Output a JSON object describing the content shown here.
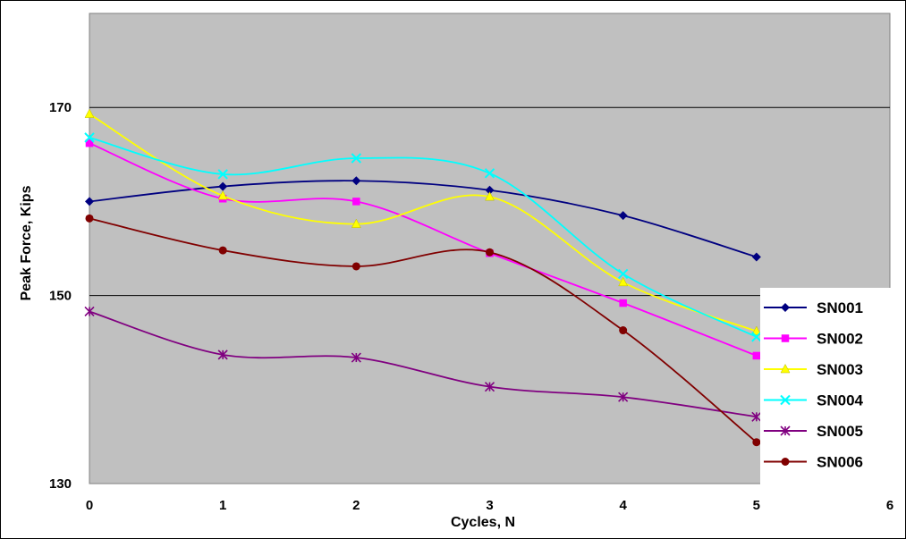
{
  "chart_data": {
    "type": "line",
    "title": "",
    "xlabel": "Cycles, N",
    "ylabel": "Peak Force, Kips",
    "xlim": [
      0,
      6
    ],
    "ylim": [
      130,
      180
    ],
    "x_ticks": [
      "0",
      "1",
      "2",
      "3",
      "4",
      "5",
      "6"
    ],
    "y_ticks": [
      {
        "value": 130,
        "label": "130"
      },
      {
        "value": 150,
        "label": "150"
      },
      {
        "value": 170,
        "label": "170"
      }
    ],
    "gridlines": [
      150,
      170
    ],
    "legend_position": "right",
    "plot_background": "#c0c0c0",
    "smoothed": true,
    "x": [
      0,
      1,
      2,
      3,
      4,
      5
    ],
    "series": [
      {
        "name": "SN001",
        "color": "#000080",
        "marker": "diamond",
        "values": [
          160.0,
          161.6,
          162.2,
          161.2,
          158.5,
          154.1
        ]
      },
      {
        "name": "SN002",
        "color": "#ff00ff",
        "marker": "square",
        "values": [
          166.2,
          160.3,
          160.0,
          154.5,
          149.2,
          143.6
        ]
      },
      {
        "name": "SN003",
        "color": "#ffff00",
        "marker": "triangle",
        "values": [
          169.3,
          160.6,
          157.6,
          160.5,
          151.4,
          146.2
        ]
      },
      {
        "name": "SN004",
        "color": "#00ffff",
        "marker": "x",
        "values": [
          166.8,
          162.9,
          164.6,
          163.0,
          152.3,
          145.6
        ]
      },
      {
        "name": "SN005",
        "color": "#800080",
        "marker": "asterisk",
        "values": [
          148.3,
          143.7,
          143.4,
          140.3,
          139.2,
          137.1
        ]
      },
      {
        "name": "SN006",
        "color": "#800000",
        "marker": "circle",
        "values": [
          158.2,
          154.8,
          153.1,
          154.6,
          146.3,
          134.4
        ]
      }
    ]
  }
}
